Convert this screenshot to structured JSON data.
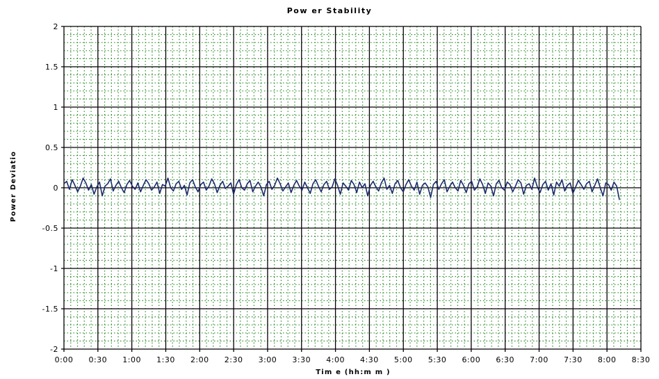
{
  "chart_data": {
    "type": "line",
    "title": "Pow er Stability",
    "xlabel": "Tim e (hh:m m )",
    "ylabel": "Power Deviatio",
    "xlim_minutes": [
      0,
      510
    ],
    "ylim": [
      -2,
      2
    ],
    "x_tick_labels": [
      "0:00",
      "0:30",
      "1:00",
      "1:30",
      "2:00",
      "2:30",
      "3:00",
      "3:30",
      "4:00",
      "4:30",
      "5:00",
      "5:30",
      "6:00",
      "6:30",
      "7:00",
      "7:30",
      "8:00",
      "8:30"
    ],
    "y_tick_labels": [
      "2",
      "1.5",
      "1",
      "0.5",
      "0",
      "-0.5",
      "-1",
      "-1.5",
      "-2"
    ],
    "y_ticks": [
      2,
      1.5,
      1,
      0.5,
      0,
      -0.5,
      -1,
      -1.5,
      -2
    ],
    "plot_background": "#ffffff",
    "major_grid": true,
    "major_grid_color": "#000000",
    "minor_grid": true,
    "minor_grid_color": "#2e8b2e",
    "line_color": "#1a2a6c",
    "series": [
      {
        "x_start_minutes": 0,
        "x_end_minutes": 491,
        "values": [
          0.05,
          0.08,
          -0.02,
          0.1,
          0.03,
          -0.05,
          0.02,
          0.12,
          0.06,
          -0.03,
          0.04,
          -0.08,
          0.01,
          0.07,
          -0.1,
          0.02,
          0.05,
          0.11,
          -0.04,
          0.03,
          0.08,
          0.0,
          -0.06,
          0.04,
          0.09,
          0.02,
          -0.02,
          0.06,
          -0.05,
          0.03,
          0.1,
          0.05,
          -0.03,
          0.01,
          0.07,
          -0.07,
          0.04,
          0.02,
          0.12,
          0.0,
          -0.04,
          0.05,
          0.08,
          -0.02,
          0.03,
          -0.09,
          0.06,
          0.1,
          0.01,
          -0.05,
          0.04,
          0.07,
          -0.03,
          0.02,
          0.11,
          0.05,
          -0.06,
          0.03,
          0.08,
          -0.01,
          0.02,
          0.06,
          -0.08,
          0.04,
          0.1,
          0.0,
          -0.03,
          0.05,
          0.09,
          -0.05,
          0.02,
          0.07,
          0.01,
          -0.1,
          0.04,
          0.08,
          -0.02,
          0.03,
          0.12,
          0.05,
          -0.04,
          0.01,
          0.06,
          -0.06,
          0.03,
          0.09,
          0.02,
          -0.03,
          0.07,
          0.0,
          -0.07,
          0.05,
          0.1,
          0.02,
          -0.05,
          0.04,
          0.08,
          -0.02,
          0.01,
          0.11,
          0.03,
          -0.08,
          0.06,
          0.02,
          -0.03,
          0.09,
          0.04,
          -0.06,
          0.07,
          0.0,
          0.05,
          -0.1,
          0.03,
          0.08,
          0.01,
          -0.04,
          0.06,
          0.12,
          -0.02,
          0.03,
          -0.07,
          0.05,
          0.09,
          0.0,
          -0.05,
          0.04,
          0.1,
          0.02,
          -0.03,
          0.07,
          -0.08,
          0.03,
          0.06,
          0.01,
          -0.12,
          0.04,
          0.08,
          -0.02,
          0.05,
          0.1,
          -0.05,
          0.02,
          0.07,
          0.0,
          -0.04,
          0.09,
          0.03,
          -0.06,
          0.05,
          0.08,
          -0.03,
          0.01,
          0.11,
          0.04,
          -0.07,
          0.06,
          0.02,
          -0.1,
          0.05,
          0.09,
          0.0,
          -0.03,
          0.07,
          0.04,
          -0.05,
          0.02,
          0.1,
          0.06,
          -0.08,
          0.03,
          0.05,
          -0.02,
          0.12,
          0.01,
          -0.06,
          0.04,
          0.08,
          -0.03,
          0.05,
          -0.09,
          0.07,
          0.02,
          0.1,
          -0.04,
          0.03,
          0.06,
          -0.07,
          0.01,
          0.09,
          0.04,
          -0.02,
          0.05,
          0.08,
          -0.05,
          0.03,
          0.11,
          0.0,
          -0.1,
          0.06,
          0.04,
          -0.03,
          0.07,
          0.02,
          -0.15
        ]
      }
    ]
  }
}
